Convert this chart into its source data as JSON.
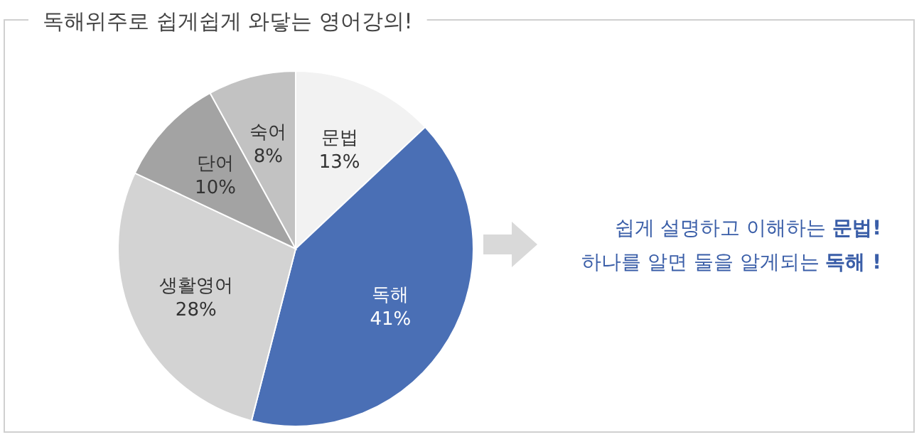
{
  "chart_data": {
    "type": "pie",
    "title": "독해위주로 쉽게쉽게 와닿는 영어강의!",
    "categories": [
      "문법",
      "독해",
      "생활영어",
      "단어",
      "숙어"
    ],
    "values": [
      13,
      41,
      28,
      10,
      8
    ],
    "colors": [
      "#f2f2f2",
      "#4a6fb5",
      "#d3d3d3",
      "#a3a3a3",
      "#c2c2c2"
    ],
    "value_labels": [
      "13%",
      "41%",
      "28%",
      "10%",
      "8%"
    ],
    "annotations": [
      "쉽게 설명하고 이해하는 문법!",
      "하나를 알면 둘을 알게되는 독해 !"
    ]
  }
}
